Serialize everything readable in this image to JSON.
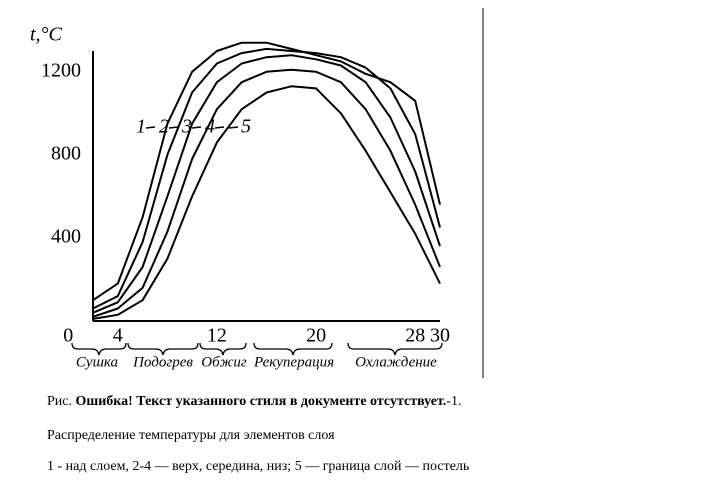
{
  "chart_data": {
    "type": "line",
    "y_label": "t,°C",
    "x": [
      2,
      4,
      6,
      8,
      10,
      12,
      14,
      16,
      18,
      20,
      22,
      24,
      26,
      28,
      30
    ],
    "xlim": [
      2,
      30
    ],
    "xticks": [
      0,
      4,
      12,
      20,
      28,
      30
    ],
    "ylim": [
      0,
      1300
    ],
    "yticks": [
      400,
      800,
      1200
    ],
    "zones": [
      "Сушка",
      "Подогрев",
      "Обжиг",
      "Рекуперация",
      "Охлаждение"
    ],
    "series": [
      {
        "name": "1",
        "color": "#000000",
        "values": [
          100,
          180,
          500,
          950,
          1200,
          1300,
          1340,
          1340,
          1310,
          1280,
          1250,
          1190,
          1150,
          1060,
          560
        ]
      },
      {
        "name": "2",
        "color": "#000000",
        "values": [
          60,
          120,
          380,
          800,
          1100,
          1240,
          1290,
          1310,
          1300,
          1290,
          1270,
          1220,
          1120,
          900,
          450
        ]
      },
      {
        "name": "3",
        "color": "#000000",
        "values": [
          40,
          90,
          260,
          600,
          950,
          1150,
          1240,
          1270,
          1280,
          1260,
          1230,
          1150,
          980,
          720,
          360
        ]
      },
      {
        "name": "4",
        "color": "#000000",
        "values": [
          20,
          60,
          160,
          430,
          780,
          1020,
          1150,
          1200,
          1210,
          1200,
          1150,
          1020,
          820,
          560,
          260
        ]
      },
      {
        "name": "5",
        "color": "#000000",
        "values": [
          10,
          30,
          100,
          300,
          600,
          860,
          1020,
          1100,
          1130,
          1120,
          1000,
          820,
          620,
          420,
          180
        ]
      }
    ]
  },
  "caption": {
    "prefix": "Рис.",
    "error": "Ошибка! Текст указанного стиля в документе отсутствует.",
    "number": "-1.",
    "lines": [
      "Распределение температуры для элементов слоя",
      "1 - над слоем, 2-4 — верх, середина, низ; 5 — граница слой — постель"
    ]
  }
}
